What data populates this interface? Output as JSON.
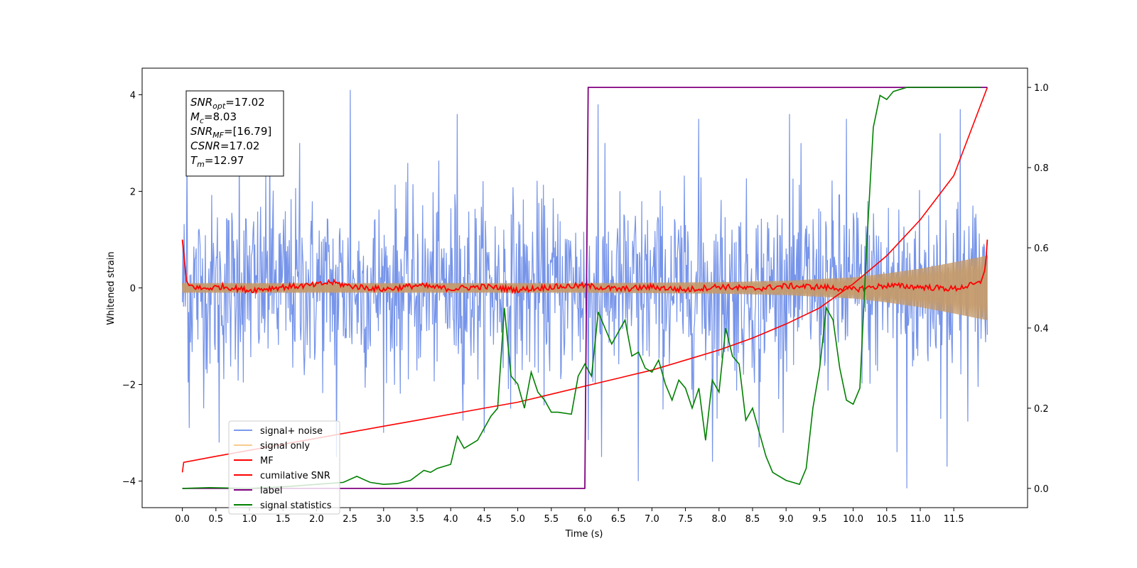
{
  "chart_data": {
    "type": "line",
    "xlabel": "Time (s)",
    "ylabel": "Whitened strain",
    "xlim": [
      -0.6,
      12.6
    ],
    "ylim": [
      -4.55,
      4.55
    ],
    "ylim_right": [
      -0.048,
      1.048
    ],
    "x_ticks": [
      "0.0",
      "0.5",
      "1.0",
      "1.5",
      "2.0",
      "2.5",
      "3.0",
      "3.5",
      "4.0",
      "4.5",
      "5.0",
      "5.5",
      "6.0",
      "6.5",
      "7.0",
      "7.5",
      "8.0",
      "8.5",
      "9.0",
      "9.5",
      "10.0",
      "10.5",
      "11.0",
      "11.5"
    ],
    "y_ticks_left": [
      "4",
      "2",
      "0",
      "−2",
      "−4"
    ],
    "y_ticks_right": [
      "1.0",
      "0.8",
      "0.6",
      "0.4",
      "0.2",
      "0.0"
    ],
    "grid": false,
    "legend_position": "lower-left",
    "colors": {
      "signal_noise": "#6f8ee8",
      "signal_only": "#f5a846",
      "mf": "#ff0000",
      "cumulative_snr": "#ff0000",
      "label": "#800080",
      "signal_statistics": "#008000"
    },
    "legend": [
      "signal+ noise",
      "signal only",
      "MF",
      "cumilative SNR",
      "label",
      "signal statistics"
    ],
    "annotation": {
      "lines": [
        {
          "name": "SNR",
          "sub": "opt",
          "value": "=17.02"
        },
        {
          "name": "M",
          "sub": "c",
          "value": "=8.03"
        },
        {
          "name": "SNR",
          "sub": "MF",
          "value": "=[16.79]"
        },
        {
          "name": "CSNR",
          "sub": "",
          "value": "=17.02"
        },
        {
          "name": "T",
          "sub": "m",
          "value": "=12.97"
        }
      ]
    },
    "series": [
      {
        "name": "signal+ noise",
        "axis": "left",
        "description_values": "noise band approx ±1.7 with spikes up to 4.1 and down to -4.1",
        "envelope": {
          "x": [
            0,
            12
          ],
          "upper": [
            1.7,
            1.7
          ],
          "lower": [
            -1.7,
            -1.7
          ]
        },
        "peaks": [
          [
            0.07,
            2.9
          ],
          [
            0.1,
            -2.9
          ],
          [
            0.55,
            -3.2
          ],
          [
            0.85,
            2.9
          ],
          [
            1.3,
            3.2
          ],
          [
            1.75,
            3.0
          ],
          [
            2.3,
            -3.5
          ],
          [
            2.5,
            4.1
          ],
          [
            4.2,
            -2.0
          ],
          [
            4.1,
            3.6
          ],
          [
            6.05,
            -3.15
          ],
          [
            6.2,
            3.8
          ],
          [
            6.25,
            -3.5
          ],
          [
            6.8,
            -4.0
          ],
          [
            7.7,
            3.5
          ],
          [
            7.9,
            -3.6
          ],
          [
            8.6,
            -3.3
          ],
          [
            9.05,
            3.6
          ],
          [
            9.9,
            3.5
          ],
          [
            10.65,
            -3.4
          ],
          [
            10.8,
            -4.15
          ],
          [
            11.3,
            3.2
          ],
          [
            11.4,
            -3.7
          ],
          [
            11.6,
            3.7
          ]
        ]
      },
      {
        "name": "signal only",
        "axis": "left",
        "envelope": {
          "x": [
            0,
            2,
            4,
            6,
            8,
            9,
            10,
            10.5,
            11,
            11.5,
            12
          ],
          "amp": [
            0.1,
            0.1,
            0.1,
            0.1,
            0.12,
            0.15,
            0.22,
            0.3,
            0.4,
            0.53,
            0.67
          ]
        }
      },
      {
        "name": "MF",
        "axis": "left",
        "x": [
          0.0,
          0.03,
          0.06,
          0.1,
          0.3,
          0.6,
          1.0,
          1.5,
          2.0,
          2.2,
          2.5,
          3.0,
          3.5,
          4.0,
          4.5,
          5.0,
          5.5,
          6.0,
          6.5,
          7.0,
          7.5,
          8.0,
          8.5,
          9.0,
          9.5,
          10.0,
          10.5,
          11.0,
          11.5,
          11.9,
          11.97,
          12.0
        ],
        "y": [
          1.0,
          0.6,
          0.15,
          0.05,
          -0.02,
          0.03,
          -0.05,
          0.02,
          0.06,
          0.12,
          0.04,
          -0.03,
          0.05,
          -0.02,
          0.03,
          -0.04,
          0.02,
          0.05,
          -0.03,
          0.02,
          -0.04,
          0.03,
          -0.02,
          0.04,
          0.02,
          -0.03,
          0.05,
          0.02,
          -0.02,
          0.1,
          0.4,
          1.0
        ]
      },
      {
        "name": "cumilative SNR",
        "axis": "right",
        "x": [
          0.0,
          0.02,
          0.5,
          1.0,
          1.5,
          2.0,
          2.5,
          3.0,
          3.5,
          4.0,
          4.5,
          5.0,
          5.5,
          6.0,
          6.5,
          7.0,
          7.5,
          8.0,
          8.5,
          9.0,
          9.5,
          10.0,
          10.5,
          11.0,
          11.5,
          12.0
        ],
        "y": [
          0.04,
          0.065,
          0.08,
          0.095,
          0.11,
          0.125,
          0.14,
          0.155,
          0.17,
          0.185,
          0.2,
          0.215,
          0.235,
          0.255,
          0.275,
          0.295,
          0.32,
          0.345,
          0.375,
          0.41,
          0.45,
          0.51,
          0.58,
          0.67,
          0.78,
          1.0
        ]
      },
      {
        "name": "label",
        "axis": "right",
        "x": [
          0.0,
          6.0,
          6.0,
          6.05,
          12.0
        ],
        "y": [
          0.0,
          0.0,
          0.0,
          1.0,
          1.0
        ]
      },
      {
        "name": "signal statistics",
        "axis": "right",
        "x": [
          0.0,
          0.4,
          1.0,
          1.6,
          2.0,
          2.4,
          2.6,
          2.8,
          3.0,
          3.2,
          3.4,
          3.6,
          3.7,
          3.8,
          4.0,
          4.1,
          4.2,
          4.3,
          4.4,
          4.6,
          4.7,
          4.8,
          4.9,
          5.0,
          5.1,
          5.2,
          5.3,
          5.4,
          5.5,
          5.6,
          5.8,
          5.9,
          6.0,
          6.1,
          6.2,
          6.3,
          6.4,
          6.5,
          6.6,
          6.7,
          6.8,
          6.9,
          7.0,
          7.1,
          7.2,
          7.3,
          7.4,
          7.5,
          7.6,
          7.7,
          7.8,
          7.9,
          8.0,
          8.1,
          8.2,
          8.3,
          8.4,
          8.5,
          8.6,
          8.7,
          8.8,
          9.0,
          9.1,
          9.2,
          9.3,
          9.4,
          9.5,
          9.6,
          9.7,
          9.8,
          9.9,
          10.0,
          10.1,
          10.2,
          10.3,
          10.4,
          10.5,
          10.6,
          10.8,
          11.0,
          11.5,
          11.9
        ],
        "y": [
          0.0,
          0.002,
          0.0,
          0.005,
          0.01,
          0.015,
          0.03,
          0.015,
          0.01,
          0.012,
          0.02,
          0.045,
          0.04,
          0.05,
          0.06,
          0.13,
          0.1,
          0.11,
          0.12,
          0.18,
          0.2,
          0.45,
          0.28,
          0.26,
          0.2,
          0.29,
          0.24,
          0.22,
          0.19,
          0.19,
          0.185,
          0.28,
          0.31,
          0.28,
          0.44,
          0.4,
          0.36,
          0.39,
          0.42,
          0.33,
          0.34,
          0.3,
          0.29,
          0.32,
          0.26,
          0.22,
          0.27,
          0.25,
          0.2,
          0.25,
          0.12,
          0.27,
          0.24,
          0.4,
          0.33,
          0.31,
          0.17,
          0.2,
          0.14,
          0.08,
          0.04,
          0.02,
          0.015,
          0.01,
          0.05,
          0.2,
          0.3,
          0.45,
          0.42,
          0.3,
          0.22,
          0.21,
          0.25,
          0.6,
          0.9,
          0.98,
          0.97,
          0.99,
          1.0,
          1.0,
          1.0,
          1.0
        ]
      }
    ]
  }
}
